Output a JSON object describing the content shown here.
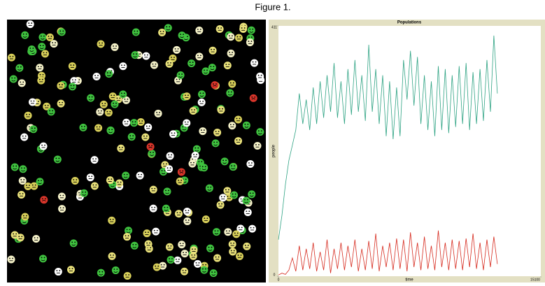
{
  "figure_title": "Figure 1.",
  "chart_data": {
    "type": "line",
    "title": "Populations",
    "y_label": "people",
    "x_label": "time",
    "x": [
      0,
      200,
      400,
      600,
      800,
      1000,
      1200,
      1400,
      1600,
      1800,
      2000,
      2200,
      2400,
      2600,
      2800,
      3000,
      3200,
      3400,
      3600,
      3800,
      4000,
      4200,
      4400,
      4600,
      4800,
      5000,
      5200,
      5400,
      5600,
      5800,
      6000,
      6200,
      6400,
      6600,
      6800,
      7000,
      7200,
      7400,
      7600,
      7800,
      8000,
      8200,
      8400,
      8600,
      8800,
      9000,
      9200,
      9400,
      9600,
      9800,
      10000,
      10200,
      10400,
      10600,
      10800,
      11000,
      11200,
      11400,
      11600,
      11800,
      12000,
      12200,
      12400,
      12600
    ],
    "series": [
      {
        "color": "#2ea383",
        "values": [
          60,
          100,
          150,
          190,
          215,
          240,
          300,
          250,
          290,
          240,
          310,
          250,
          320,
          260,
          330,
          270,
          350,
          260,
          320,
          250,
          340,
          265,
          355,
          270,
          330,
          255,
          380,
          270,
          340,
          250,
          330,
          230,
          320,
          225,
          310,
          230,
          355,
          290,
          370,
          280,
          360,
          250,
          330,
          240,
          320,
          230,
          345,
          240,
          340,
          235,
          330,
          245,
          345,
          250,
          350,
          240,
          335,
          250,
          340,
          255,
          355,
          270,
          395,
          300
        ]
      },
      {
        "color": "#d62a1e",
        "values": [
          2,
          5,
          3,
          10,
          30,
          8,
          50,
          10,
          45,
          12,
          55,
          8,
          40,
          10,
          60,
          5,
          45,
          12,
          55,
          10,
          50,
          15,
          60,
          8,
          45,
          10,
          58,
          12,
          70,
          8,
          50,
          15,
          55,
          10,
          62,
          12,
          60,
          8,
          72,
          15,
          55,
          10,
          65,
          12,
          50,
          10,
          75,
          15,
          55,
          10,
          60,
          12,
          58,
          10,
          62,
          15,
          70,
          12,
          55,
          10,
          60,
          15,
          65,
          20
        ]
      }
    ],
    "xlim": [
      0,
      15100
    ],
    "xticks": [
      0,
      15100
    ],
    "ylim": [
      0,
      411
    ],
    "yticks": [
      0,
      411
    ]
  }
}
